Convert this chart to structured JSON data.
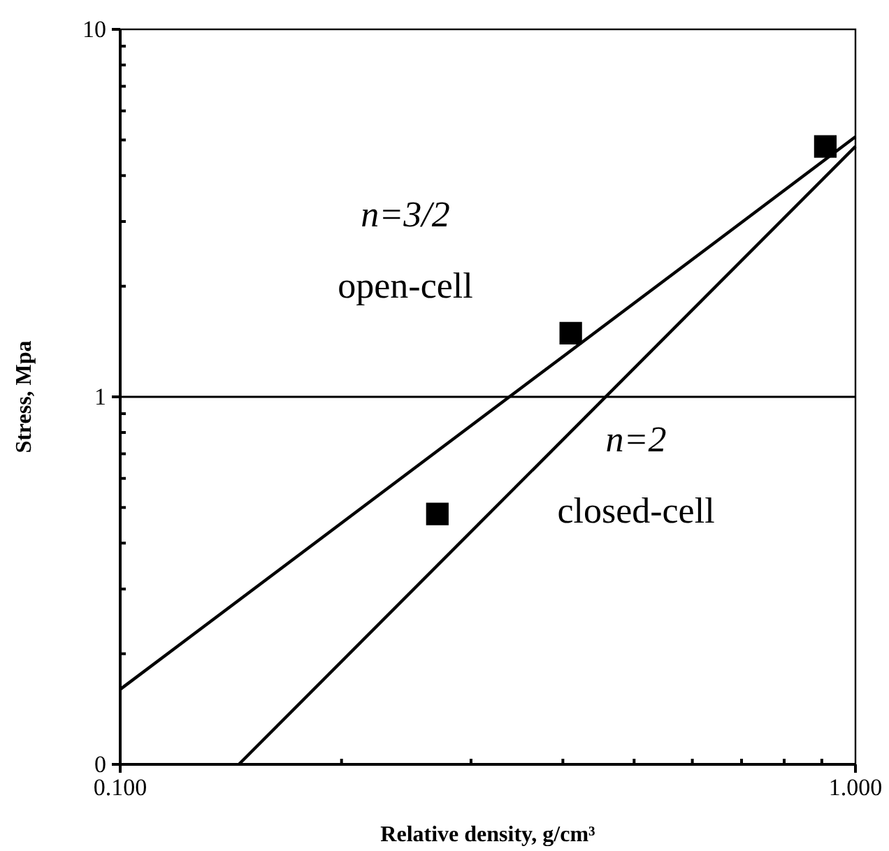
{
  "chart_data": {
    "type": "scatter",
    "xlabel": "Relative density, g/cm³",
    "ylabel": "Stress, Mpa",
    "log": "xy",
    "grid": false,
    "xlim": [
      0.1,
      1
    ],
    "ylim": [
      0.1,
      10
    ],
    "xticks": [
      {
        "value": 0.1,
        "label": "0.100"
      },
      {
        "value": 0.2,
        "label": null
      },
      {
        "value": 0.3,
        "label": null
      },
      {
        "value": 0.4,
        "label": null
      },
      {
        "value": 0.5,
        "label": null
      },
      {
        "value": 0.6,
        "label": null
      },
      {
        "value": 0.7,
        "label": null
      },
      {
        "value": 0.8,
        "label": null
      },
      {
        "value": 0.9,
        "label": null
      },
      {
        "value": 1,
        "label": "1.000"
      }
    ],
    "yticks": [
      {
        "value": 0.1,
        "label": "0"
      },
      {
        "value": 0.2,
        "label": null
      },
      {
        "value": 0.3,
        "label": null
      },
      {
        "value": 0.4,
        "label": null
      },
      {
        "value": 0.5,
        "label": null
      },
      {
        "value": 0.6,
        "label": null
      },
      {
        "value": 0.7,
        "label": null
      },
      {
        "value": 0.8,
        "label": null
      },
      {
        "value": 0.9,
        "label": null
      },
      1,
      {
        "value": 2,
        "label": null
      },
      {
        "value": 3,
        "label": null
      },
      {
        "value": 4,
        "label": null
      },
      {
        "value": 5,
        "label": null
      },
      {
        "value": 6,
        "label": null
      },
      {
        "value": 7,
        "label": null
      },
      {
        "value": 8,
        "label": null
      },
      {
        "value": 9,
        "label": null
      },
      10
    ],
    "series": [
      {
        "color": "#000000",
        "marker": "square",
        "x": [
          0.27,
          0.41,
          0.91
        ],
        "values": [
          0.48,
          1.49,
          4.8
        ]
      },
      {
        "type": "line",
        "marker": "none",
        "color": "#000000",
        "x": [
          0.1,
          1
        ],
        "values": [
          0.16,
          5.1
        ]
      },
      {
        "type": "line",
        "marker": "none",
        "color": "#000000",
        "x": [
          0.145,
          1
        ],
        "values": [
          0.1,
          4.8
        ]
      }
    ],
    "ref_lines": [
      {
        "axis": "y",
        "value": 1,
        "label": null,
        "color": "#000000"
      }
    ],
    "annotations": [
      "n=3/2",
      "open-cell",
      "n=2",
      "closed-cell"
    ]
  }
}
